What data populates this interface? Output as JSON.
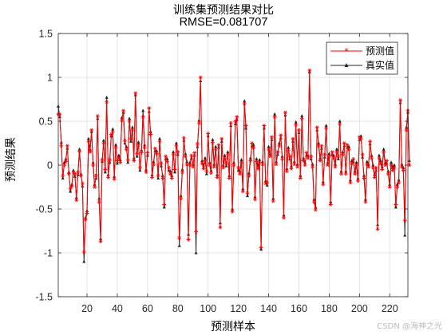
{
  "chart_data": {
    "type": "line",
    "title": [
      "训练集预测结果对比",
      "RMSE=0.081707"
    ],
    "xlabel": "预测样本",
    "ylabel": "预测结果",
    "xlim": [
      1,
      232
    ],
    "ylim": [
      -1.5,
      1.5
    ],
    "xticks": [
      20,
      40,
      60,
      80,
      100,
      120,
      140,
      160,
      180,
      200,
      220
    ],
    "yticks": [
      -1.5,
      -1,
      -0.5,
      0,
      0.5,
      1,
      1.5
    ],
    "grid": true,
    "legend_position": "top-right",
    "series": [
      {
        "name": "预测值",
        "color": "#ff0000",
        "marker": "*",
        "values": [
          0.58,
          0.58,
          0.22,
          -0.12,
          0.0,
          0.04,
          0.22,
          -0.1,
          -0.27,
          -0.24,
          -0.08,
          -0.1,
          -0.4,
          -0.08,
          0.16,
          -0.12,
          -0.21,
          -0.99,
          -0.62,
          -0.55,
          0.27,
          0.15,
          0.4,
          0.0,
          -0.25,
          -0.12,
          0.56,
          -0.42,
          -0.87,
          0.06,
          0.25,
          -0.05,
          0.72,
          -0.14,
          0.06,
          0.35,
          0.38,
          -0.16,
          0.2,
          0.05,
          0.08,
          0.03,
          0.51,
          0.62,
          0.28,
          0.18,
          0.06,
          0.5,
          0.3,
          0.4,
          0.05,
          0.82,
          0.13,
          0.23,
          -0.03,
          0.14,
          0.55,
          0.2,
          -0.08,
          0.14,
          0.65,
          0.35,
          -0.14,
          0.01,
          0.19,
          0.13,
          -0.12,
          0.27,
          0.02,
          -0.15,
          -0.45,
          0.1,
          0.04,
          -0.03,
          -0.1,
          -0.15,
          0.12,
          -0.05,
          0.22,
          0.15,
          -0.83,
          -0.38,
          -0.08,
          0.31,
          0.1,
          0.01,
          -0.85,
          0.0,
          0.11,
          -0.02,
          0.14,
          -0.76,
          0.24,
          0.48,
          1.0,
          0.02,
          -0.04,
          0.05,
          -0.07,
          0.36,
          0.0,
          -0.09,
          0.26,
          -0.02,
          0.18,
          -0.14,
          0.23,
          -0.71,
          0.3,
          -0.03,
          0.08,
          0.02,
          0.12,
          -0.15,
          0.48,
          -0.53,
          0.0,
          0.5,
          0.55,
          -0.03,
          -0.1,
          0.03,
          -0.3,
          0.7,
          0.45,
          -0.32,
          -0.12,
          0.05,
          0.25,
          0.2,
          -0.39,
          0.04,
          -0.04,
          0.03,
          -0.94,
          0.01,
          0.45,
          -0.21,
          -0.2,
          0.18,
          0.1,
          0.32,
          -0.41,
          0.55,
          0.01,
          0.15,
          0.22,
          0.34,
          0.07,
          -0.6,
          0.6,
          -0.07,
          0.17,
          0.1,
          -0.04,
          0.3,
          0.01,
          0.46,
          -0.02,
          0.4,
          -0.15,
          0.53,
          0.05,
          0.0,
          0.14,
          0.08,
          1.08,
          0.1,
          -0.02,
          -0.42,
          -0.51,
          0.43,
          0.22,
          0.05,
          0.22,
          -0.22,
          0.12,
          0.42,
          0.0,
          0.1,
          -0.45,
          0.15,
          0.08,
          -0.02,
          0.15,
          0.1,
          0.47,
          -0.1,
          0.12,
          0.25,
          -0.1,
          0.23,
          0.18,
          -0.2,
          0.02,
          0.07,
          -0.1,
          0.0,
          -0.18,
          0.32,
          0.3,
          0.12,
          -0.15,
          -0.42,
          0.01,
          -0.02,
          0.27,
          0.08,
          -0.03,
          -0.14,
          -0.03,
          -0.73,
          0.08,
          0.02,
          -0.05,
          0.15,
          0.0,
          0.05,
          -0.1,
          -0.25,
          0.0,
          -0.06,
          -0.03,
          -0.45,
          -0.25,
          -0.2,
          0.74,
          -0.02,
          -0.06,
          -0.63,
          0.4,
          0.62,
          0.0
        ]
      },
      {
        "name": "真实值",
        "color": "#262626",
        "marker": "^",
        "values": [
          0.67,
          0.55,
          0.26,
          -0.15,
          0.03,
          0.07,
          0.19,
          -0.08,
          -0.3,
          -0.22,
          -0.06,
          -0.13,
          -0.37,
          -0.11,
          0.18,
          -0.1,
          -0.24,
          -1.1,
          -0.6,
          -0.52,
          0.3,
          0.18,
          0.38,
          0.03,
          -0.22,
          -0.15,
          0.53,
          -0.38,
          -0.84,
          0.04,
          0.28,
          -0.08,
          0.77,
          -0.11,
          0.03,
          0.33,
          0.41,
          -0.13,
          0.23,
          0.02,
          0.11,
          0.06,
          0.54,
          0.6,
          0.25,
          0.21,
          0.03,
          0.53,
          0.27,
          0.43,
          0.08,
          0.8,
          0.1,
          0.26,
          -0.06,
          0.17,
          0.62,
          0.23,
          -0.05,
          0.11,
          0.61,
          0.38,
          -0.11,
          0.04,
          0.16,
          0.16,
          -0.15,
          0.3,
          -0.01,
          -0.12,
          -0.48,
          0.07,
          0.07,
          -0.06,
          -0.07,
          -0.12,
          0.15,
          -0.08,
          0.25,
          0.12,
          -0.92,
          -0.35,
          -0.05,
          0.28,
          0.13,
          0.04,
          -0.79,
          0.03,
          0.08,
          0.01,
          0.11,
          -1.0,
          0.21,
          0.51,
          0.96,
          0.05,
          -0.01,
          0.08,
          -0.1,
          0.33,
          0.03,
          -0.06,
          0.29,
          0.01,
          0.21,
          -0.11,
          0.2,
          -0.66,
          0.27,
          0.0,
          0.11,
          -0.01,
          0.15,
          -0.12,
          0.45,
          -0.5,
          0.03,
          0.47,
          0.52,
          -0.06,
          -0.07,
          0.06,
          -0.27,
          0.73,
          0.42,
          -0.35,
          -0.09,
          0.08,
          0.22,
          0.23,
          -0.36,
          0.07,
          -0.01,
          0.06,
          -0.96,
          0.04,
          0.42,
          -0.18,
          -0.23,
          0.21,
          0.13,
          0.29,
          -0.38,
          0.58,
          0.04,
          0.12,
          0.25,
          0.31,
          0.1,
          -0.57,
          0.57,
          -0.04,
          0.2,
          0.07,
          -0.01,
          0.27,
          0.04,
          0.49,
          0.01,
          0.37,
          -0.12,
          0.56,
          0.08,
          0.03,
          0.11,
          0.11,
          1.06,
          0.07,
          0.01,
          -0.39,
          -0.48,
          0.4,
          0.25,
          0.08,
          0.19,
          -0.19,
          0.09,
          0.45,
          0.03,
          0.13,
          -0.42,
          0.12,
          0.11,
          0.01,
          0.18,
          0.07,
          0.5,
          -0.07,
          0.15,
          0.22,
          -0.07,
          0.2,
          0.21,
          -0.17,
          0.05,
          0.04,
          -0.07,
          0.03,
          -0.15,
          0.29,
          0.33,
          0.09,
          -0.12,
          -0.39,
          0.04,
          0.01,
          0.24,
          0.11,
          0.0,
          -0.11,
          -0.06,
          -0.68,
          0.11,
          0.05,
          -0.02,
          0.18,
          0.03,
          0.02,
          -0.07,
          -0.22,
          0.03,
          -0.03,
          0.0,
          -0.48,
          -0.22,
          -0.17,
          0.71,
          0.01,
          -0.03,
          -0.8,
          0.43,
          0.6,
          0.05
        ]
      }
    ]
  },
  "watermark": "CSDN @海神之光"
}
